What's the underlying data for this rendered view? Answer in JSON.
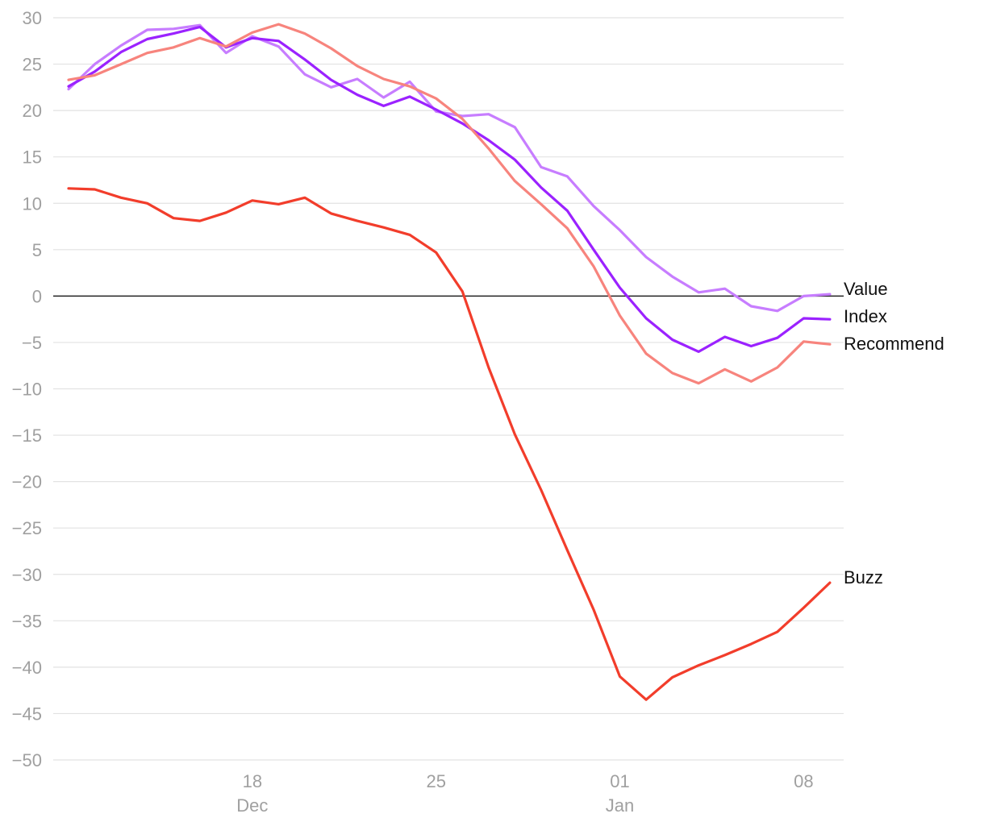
{
  "chart_data": {
    "type": "line",
    "title": "",
    "xlabel": "",
    "ylabel": "",
    "ylim": [
      -50,
      30
    ],
    "yticks": [
      30,
      25,
      20,
      15,
      10,
      5,
      0,
      -5,
      -10,
      -15,
      -20,
      -25,
      -30,
      -35,
      -40,
      -45,
      -50
    ],
    "ytick_labels": [
      "30",
      "25",
      "20",
      "15",
      "10",
      "5",
      "0",
      "−5",
      "−10",
      "−15",
      "−20",
      "−25",
      "−30",
      "−35",
      "−40",
      "−45",
      "−50"
    ],
    "grid": true,
    "x": [
      "Dec 11",
      "Dec 12",
      "Dec 13",
      "Dec 14",
      "Dec 15",
      "Dec 16",
      "Dec 17",
      "Dec 18",
      "Dec 19",
      "Dec 20",
      "Dec 21",
      "Dec 22",
      "Dec 23",
      "Dec 24",
      "Dec 25",
      "Dec 26",
      "Dec 27",
      "Dec 28",
      "Dec 29",
      "Dec 30",
      "Dec 31",
      "Jan 01",
      "Jan 02",
      "Jan 03",
      "Jan 04",
      "Jan 05",
      "Jan 06",
      "Jan 07",
      "Jan 08",
      "Jan 09"
    ],
    "xticks": [
      {
        "x": "Dec 18",
        "label": "18",
        "sublabel": "Dec"
      },
      {
        "x": "Dec 25",
        "label": "25",
        "sublabel": ""
      },
      {
        "x": "Jan 01",
        "label": "01",
        "sublabel": "Jan"
      },
      {
        "x": "Jan 08",
        "label": "08",
        "sublabel": ""
      }
    ],
    "series": [
      {
        "name": "Value",
        "color": "#c77dff",
        "values": [
          22.3,
          25.0,
          27.0,
          28.7,
          28.8,
          29.2,
          26.2,
          28.0,
          26.9,
          23.9,
          22.5,
          23.4,
          21.4,
          23.1,
          19.9,
          19.4,
          19.6,
          18.2,
          13.9,
          12.9,
          9.7,
          7.1,
          4.2,
          2.1,
          0.4,
          0.8,
          -1.1,
          -1.6,
          0.0,
          0.2
        ]
      },
      {
        "name": "Index",
        "color": "#9b22ff",
        "values": [
          22.6,
          24.2,
          26.3,
          27.7,
          28.3,
          29.0,
          26.8,
          27.8,
          27.5,
          25.5,
          23.3,
          21.7,
          20.5,
          21.5,
          20.1,
          18.6,
          16.8,
          14.7,
          11.7,
          9.2,
          5.0,
          0.9,
          -2.4,
          -4.7,
          -6.0,
          -4.4,
          -5.4,
          -4.5,
          -2.4,
          -2.5
        ]
      },
      {
        "name": "Recommend",
        "color": "#f7847d",
        "values": [
          23.3,
          23.8,
          25.0,
          26.2,
          26.8,
          27.8,
          26.9,
          28.4,
          29.3,
          28.3,
          26.7,
          24.8,
          23.4,
          22.6,
          21.3,
          19.1,
          15.9,
          12.4,
          9.9,
          7.3,
          3.2,
          -2.1,
          -6.2,
          -8.3,
          -9.4,
          -7.9,
          -9.2,
          -7.7,
          -4.9,
          -5.2
        ]
      },
      {
        "name": "Buzz",
        "color": "#f23d2b",
        "values": [
          11.6,
          11.5,
          10.6,
          10.0,
          8.4,
          8.1,
          9.0,
          10.3,
          9.9,
          10.6,
          8.9,
          8.1,
          7.4,
          6.6,
          4.7,
          0.5,
          -7.7,
          -14.9,
          -20.9,
          -27.4,
          -33.8,
          -41.0,
          -43.5,
          -41.1,
          -39.8,
          -38.7,
          -37.5,
          -36.2,
          -33.6,
          -30.9
        ]
      }
    ]
  }
}
